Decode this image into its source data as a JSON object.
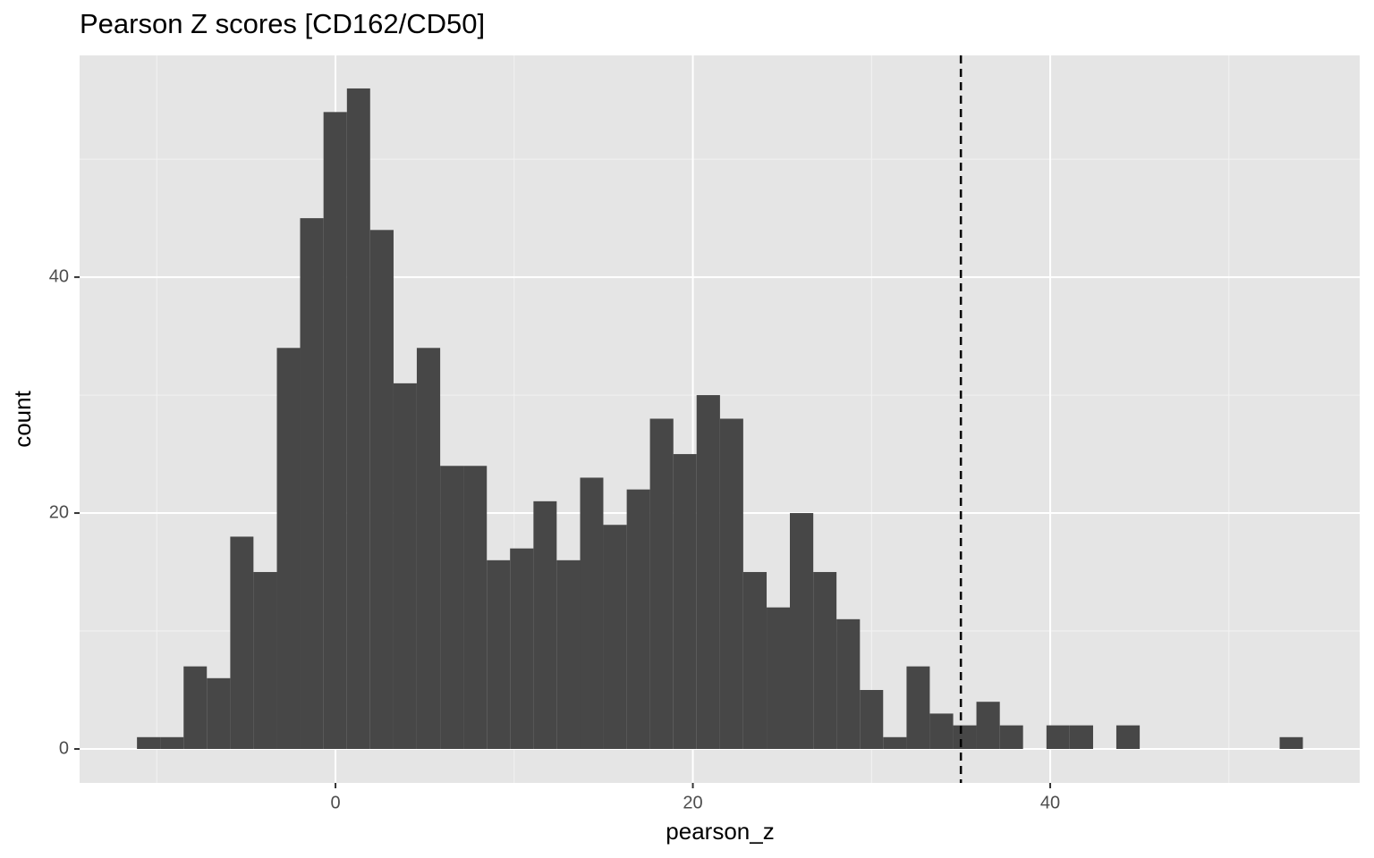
{
  "chart_data": {
    "type": "histogram",
    "title": "Pearson Z scores [CD162/CD50]",
    "x_label": "pearson_z",
    "y_label": "count",
    "bins": [
      -11.11,
      -9.81,
      -8.5,
      -7.2,
      -5.89,
      -4.59,
      -3.28,
      -1.98,
      -0.67,
      0.64,
      1.94,
      3.25,
      4.55,
      5.86,
      7.16,
      8.47,
      9.77,
      11.08,
      12.38,
      13.69,
      14.99,
      16.3,
      17.6,
      18.91,
      20.21,
      21.52,
      22.82,
      24.13,
      25.43,
      26.74,
      28.04,
      29.35,
      30.65,
      31.96,
      33.26,
      34.57,
      35.87,
      37.18,
      38.48,
      39.79,
      41.09,
      42.4,
      43.7,
      45.01,
      46.31,
      47.62,
      48.92,
      50.23,
      51.53,
      52.84,
      54.14
    ],
    "values": [
      1,
      1,
      7,
      6,
      18,
      15,
      34,
      45,
      54,
      56,
      44,
      31,
      34,
      24,
      24,
      16,
      17,
      21,
      16,
      23,
      19,
      22,
      28,
      25,
      30,
      28,
      15,
      12,
      20,
      15,
      11,
      5,
      1,
      7,
      3,
      2,
      4,
      2,
      0,
      2,
      2,
      0,
      2,
      0,
      0,
      0,
      0,
      0,
      0,
      1
    ],
    "color": "#474747",
    "xlim": [
      -14.32,
      57.32
    ],
    "ylim": [
      -2.88,
      58.8
    ],
    "xticks": [
      0,
      20,
      40
    ],
    "yticks": [
      0,
      20,
      40
    ],
    "x_minor_ticks": [
      -10,
      10,
      30,
      50
    ],
    "y_minor_ticks": [
      10,
      30,
      50
    ],
    "vline": 35,
    "grid": true
  }
}
